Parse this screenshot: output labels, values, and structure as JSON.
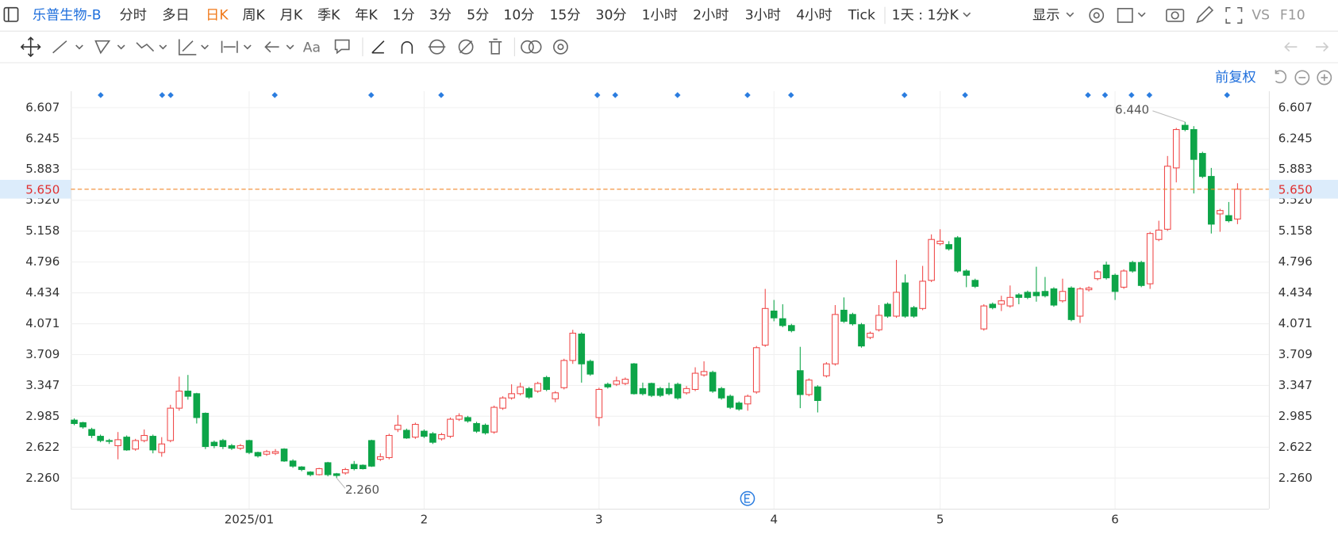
{
  "toolbar": {
    "symbol": "乐普生物-B",
    "periods": [
      "分时",
      "多日",
      "日K",
      "周K",
      "月K",
      "季K",
      "年K",
      "1分",
      "3分",
      "5分",
      "10分",
      "15分",
      "30分",
      "1小时",
      "2小时",
      "3小时",
      "4小时",
      "Tick",
      "1天 : 1分K"
    ],
    "active": "日K",
    "display": "显示",
    "vs": "VS",
    "f10": "F10",
    "text_tool": "Aa"
  },
  "adjust": "前复权",
  "chart_data": {
    "type": "candlestick",
    "categories": [
      null,
      null,
      null,
      null,
      null,
      null,
      null,
      null,
      null,
      null,
      null,
      null,
      null,
      null,
      null,
      null,
      null,
      null,
      null,
      null,
      "2025/01",
      null,
      null,
      null,
      null,
      null,
      null,
      null,
      null,
      null,
      null,
      null,
      null,
      null,
      null,
      null,
      null,
      null,
      null,
      null,
      "2",
      null,
      null,
      null,
      null,
      null,
      null,
      null,
      null,
      null,
      null,
      null,
      null,
      null,
      null,
      null,
      null,
      null,
      null,
      null,
      "3",
      null,
      null,
      null,
      null,
      null,
      null,
      null,
      null,
      null,
      null,
      null,
      null,
      null,
      null,
      null,
      null,
      null,
      null,
      null,
      "4",
      null,
      null,
      null,
      null,
      null,
      null,
      null,
      null,
      null,
      null,
      null,
      null,
      null,
      null,
      null,
      null,
      null,
      null,
      "5",
      null,
      null,
      null,
      null,
      null,
      null,
      null,
      null,
      null,
      null,
      null,
      null,
      null,
      null,
      null,
      null,
      null,
      null,
      null,
      "6",
      null,
      null,
      null,
      null,
      null,
      null,
      null,
      null,
      null,
      null,
      null,
      null,
      null,
      null
    ],
    "open": [
      2.94,
      2.91,
      2.83,
      2.75,
      2.7,
      2.64,
      2.74,
      2.6,
      2.7,
      2.75,
      2.56,
      2.7,
      3.08,
      3.28,
      3.25,
      3.02,
      2.68,
      2.7,
      2.64,
      2.61,
      2.7,
      2.56,
      2.54,
      2.55,
      2.6,
      2.46,
      2.39,
      2.33,
      2.3,
      2.44,
      2.31,
      2.32,
      2.42,
      2.41,
      2.7,
      2.48,
      2.5,
      2.83,
      2.82,
      2.74,
      2.81,
      2.78,
      2.72,
      2.75,
      2.95,
      2.97,
      2.9,
      2.88,
      2.8,
      3.08,
      3.2,
      3.25,
      3.31,
      3.28,
      3.44,
      3.19,
      3.32,
      3.64,
      3.95,
      3.63,
      2.97,
      3.36,
      3.36,
      3.37,
      3.6,
      3.31,
      3.37,
      3.31,
      3.31,
      3.36,
      3.26,
      3.3,
      3.47,
      3.5,
      3.31,
      3.22,
      3.14,
      3.13,
      3.27,
      3.82,
      4.22,
      4.13,
      4.05,
      3.52,
      3.24,
      3.33,
      3.46,
      3.6,
      4.23,
      4.18,
      4.06,
      3.91,
      4.0,
      4.3,
      4.16,
      4.55,
      4.26,
      4.25,
      4.58,
      5.01,
      5.0,
      5.08,
      4.69,
      4.58,
      4.01,
      4.3,
      4.3,
      4.28,
      4.41,
      4.44,
      4.44,
      4.45,
      4.48,
      4.34,
      4.49,
      4.16,
      4.47,
      4.6,
      4.76,
      4.64,
      4.5,
      4.79,
      4.79,
      4.54,
      5.06,
      5.18,
      5.9,
      6.4,
      6.35,
      6.07,
      5.8,
      5.36,
      5.34,
      5.3
    ],
    "high": [
      2.96,
      2.92,
      2.85,
      2.77,
      2.72,
      2.8,
      2.76,
      2.72,
      2.83,
      2.77,
      2.74,
      3.12,
      3.45,
      3.47,
      3.26,
      3.03,
      2.7,
      2.72,
      2.66,
      2.66,
      2.71,
      2.57,
      2.59,
      2.6,
      2.61,
      2.48,
      2.4,
      2.34,
      2.38,
      2.45,
      2.32,
      2.38,
      2.46,
      2.42,
      2.71,
      2.55,
      2.78,
      3.0,
      2.84,
      2.91,
      2.83,
      2.8,
      2.79,
      2.97,
      3.02,
      2.99,
      2.92,
      2.9,
      3.11,
      3.22,
      3.36,
      3.38,
      3.33,
      3.39,
      3.46,
      3.28,
      3.66,
      4.0,
      3.97,
      3.65,
      3.32,
      3.38,
      3.45,
      3.44,
      3.61,
      3.38,
      3.38,
      3.33,
      3.38,
      3.38,
      3.34,
      3.56,
      3.63,
      3.52,
      3.33,
      3.24,
      3.16,
      3.24,
      3.81,
      4.48,
      4.35,
      4.3,
      4.07,
      3.8,
      3.43,
      3.35,
      3.62,
      4.29,
      4.38,
      4.2,
      4.08,
      3.98,
      4.29,
      4.32,
      4.82,
      4.65,
      4.28,
      4.75,
      5.12,
      5.18,
      5.04,
      5.1,
      4.71,
      4.6,
      4.3,
      4.32,
      4.4,
      4.52,
      4.43,
      4.46,
      4.74,
      4.62,
      4.5,
      4.6,
      4.51,
      4.5,
      4.51,
      4.7,
      4.8,
      4.66,
      4.71,
      4.81,
      4.81,
      5.15,
      5.28,
      6.04,
      6.37,
      6.44,
      6.39,
      6.09,
      5.9,
      5.42,
      5.5,
      5.72
    ],
    "low": [
      2.88,
      2.84,
      2.73,
      2.68,
      2.66,
      2.48,
      2.58,
      2.58,
      2.68,
      2.55,
      2.51,
      2.68,
      3.05,
      3.18,
      2.9,
      2.6,
      2.61,
      2.6,
      2.59,
      2.59,
      2.54,
      2.5,
      2.52,
      2.53,
      2.45,
      2.38,
      2.34,
      2.28,
      2.29,
      2.28,
      2.26,
      2.3,
      2.35,
      2.36,
      2.39,
      2.46,
      2.48,
      2.8,
      2.72,
      2.72,
      2.73,
      2.66,
      2.7,
      2.73,
      2.93,
      2.91,
      2.79,
      2.77,
      2.78,
      3.06,
      3.18,
      3.23,
      3.19,
      3.26,
      3.28,
      3.15,
      3.3,
      3.6,
      3.38,
      3.46,
      2.87,
      3.31,
      3.34,
      3.35,
      3.24,
      3.23,
      3.21,
      3.21,
      3.23,
      3.18,
      3.24,
      3.28,
      3.45,
      3.26,
      3.18,
      3.07,
      3.05,
      3.05,
      3.25,
      3.8,
      4.1,
      4.03,
      3.97,
      3.08,
      3.22,
      3.03,
      3.44,
      3.58,
      4.08,
      4.05,
      3.79,
      3.89,
      3.98,
      4.14,
      4.14,
      4.14,
      4.14,
      4.23,
      4.56,
      4.99,
      4.93,
      4.67,
      4.5,
      4.49,
      3.99,
      4.24,
      4.22,
      4.26,
      4.3,
      4.36,
      4.33,
      4.38,
      4.27,
      4.32,
      4.1,
      4.08,
      4.45,
      4.58,
      4.59,
      4.35,
      4.48,
      4.67,
      4.5,
      4.48,
      5.04,
      5.16,
      5.73,
      6.33,
      5.6,
      5.78,
      5.13,
      5.15,
      5.26,
      5.24
    ],
    "close": [
      2.9,
      2.86,
      2.76,
      2.7,
      2.69,
      2.71,
      2.59,
      2.7,
      2.76,
      2.59,
      2.66,
      3.08,
      3.28,
      3.22,
      2.97,
      2.63,
      2.64,
      2.63,
      2.61,
      2.64,
      2.56,
      2.52,
      2.57,
      2.57,
      2.46,
      2.4,
      2.36,
      2.3,
      2.37,
      2.3,
      2.29,
      2.36,
      2.37,
      2.37,
      2.4,
      2.51,
      2.76,
      2.88,
      2.73,
      2.89,
      2.75,
      2.68,
      2.77,
      2.95,
      2.99,
      2.93,
      2.81,
      2.79,
      3.09,
      3.2,
      3.25,
      3.33,
      3.21,
      3.37,
      3.3,
      3.26,
      3.64,
      3.96,
      3.6,
      3.48,
      3.3,
      3.33,
      3.4,
      3.42,
      3.25,
      3.25,
      3.23,
      3.23,
      3.25,
      3.2,
      3.31,
      3.49,
      3.51,
      3.28,
      3.2,
      3.09,
      3.07,
      3.22,
      3.79,
      4.25,
      4.14,
      4.05,
      3.99,
      3.24,
      3.41,
      3.17,
      3.6,
      4.18,
      4.1,
      4.07,
      3.81,
      3.96,
      4.17,
      4.16,
      4.44,
      4.16,
      4.16,
      4.57,
      5.06,
      5.04,
      4.95,
      4.69,
      4.64,
      4.51,
      4.28,
      4.26,
      4.34,
      4.38,
      4.38,
      4.38,
      4.4,
      4.4,
      4.29,
      4.45,
      4.12,
      4.48,
      4.49,
      4.68,
      4.61,
      4.45,
      4.69,
      4.69,
      4.52,
      5.13,
      5.17,
      5.92,
      6.35,
      6.35,
      6.0,
      5.8,
      5.24,
      5.4,
      5.28,
      5.65
    ],
    "up_color": "#f04a4a",
    "down_color": "#0da548",
    "ylim": [
      1.9,
      6.8
    ],
    "yticks": [
      {
        "value": 2.26,
        "label": "2.260"
      },
      {
        "value": 2.622,
        "label": "2.622"
      },
      {
        "value": 2.985,
        "label": "2.985"
      },
      {
        "value": 3.347,
        "label": "3.347"
      },
      {
        "value": 3.709,
        "label": "3.709"
      },
      {
        "value": 4.071,
        "label": "4.071"
      },
      {
        "value": 4.434,
        "label": "4.434"
      },
      {
        "value": 4.796,
        "label": "4.796"
      },
      {
        "value": 5.158,
        "label": "5.158"
      },
      {
        "value": 5.52,
        "label": "5.520"
      },
      {
        "value": 5.883,
        "label": "5.883"
      },
      {
        "value": 6.245,
        "label": "6.245"
      },
      {
        "value": 6.607,
        "label": "6.607"
      }
    ],
    "grid": true,
    "price_line": {
      "value": 5.65,
      "label": "5.650",
      "color": "#f28a2e"
    },
    "high_label": {
      "value": 6.44,
      "label": "6.440"
    },
    "low_label": {
      "value": 2.26,
      "label": "2.260"
    }
  }
}
